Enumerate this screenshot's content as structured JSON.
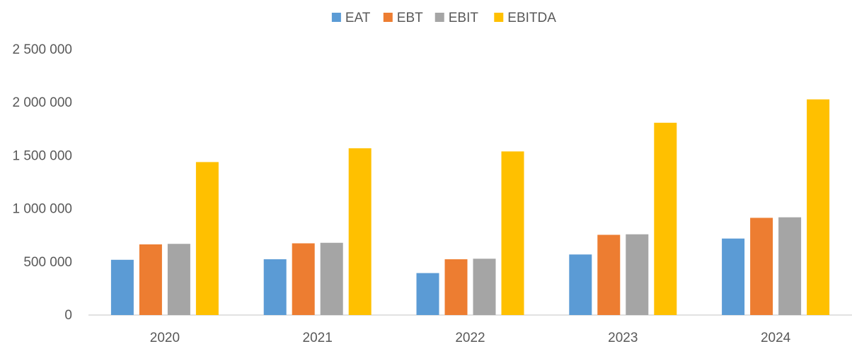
{
  "chart_data": {
    "type": "bar",
    "title": "",
    "xlabel": "",
    "ylabel": "",
    "categories": [
      "2020",
      "2021",
      "2022",
      "2023",
      "2024"
    ],
    "series": [
      {
        "name": "EAT",
        "color": "#5B9BD5",
        "values": [
          520000,
          525000,
          395000,
          570000,
          720000
        ]
      },
      {
        "name": "EBT",
        "color": "#ED7D31",
        "values": [
          665000,
          675000,
          525000,
          755000,
          915000
        ]
      },
      {
        "name": "EBIT",
        "color": "#A5A5A5",
        "values": [
          670000,
          680000,
          530000,
          760000,
          920000
        ]
      },
      {
        "name": "EBITDA",
        "color": "#FFC000",
        "values": [
          1440000,
          1570000,
          1540000,
          1810000,
          2030000
        ]
      }
    ],
    "ylim": [
      0,
      2500000
    ],
    "yticks": [
      0,
      500000,
      1000000,
      1500000,
      2000000,
      2500000
    ],
    "ytick_labels": [
      "0",
      "500 000",
      "1 000 000",
      "1 500 000",
      "2 000 000",
      "2 500 000"
    ],
    "legend_position": "top-center",
    "grid": false
  }
}
